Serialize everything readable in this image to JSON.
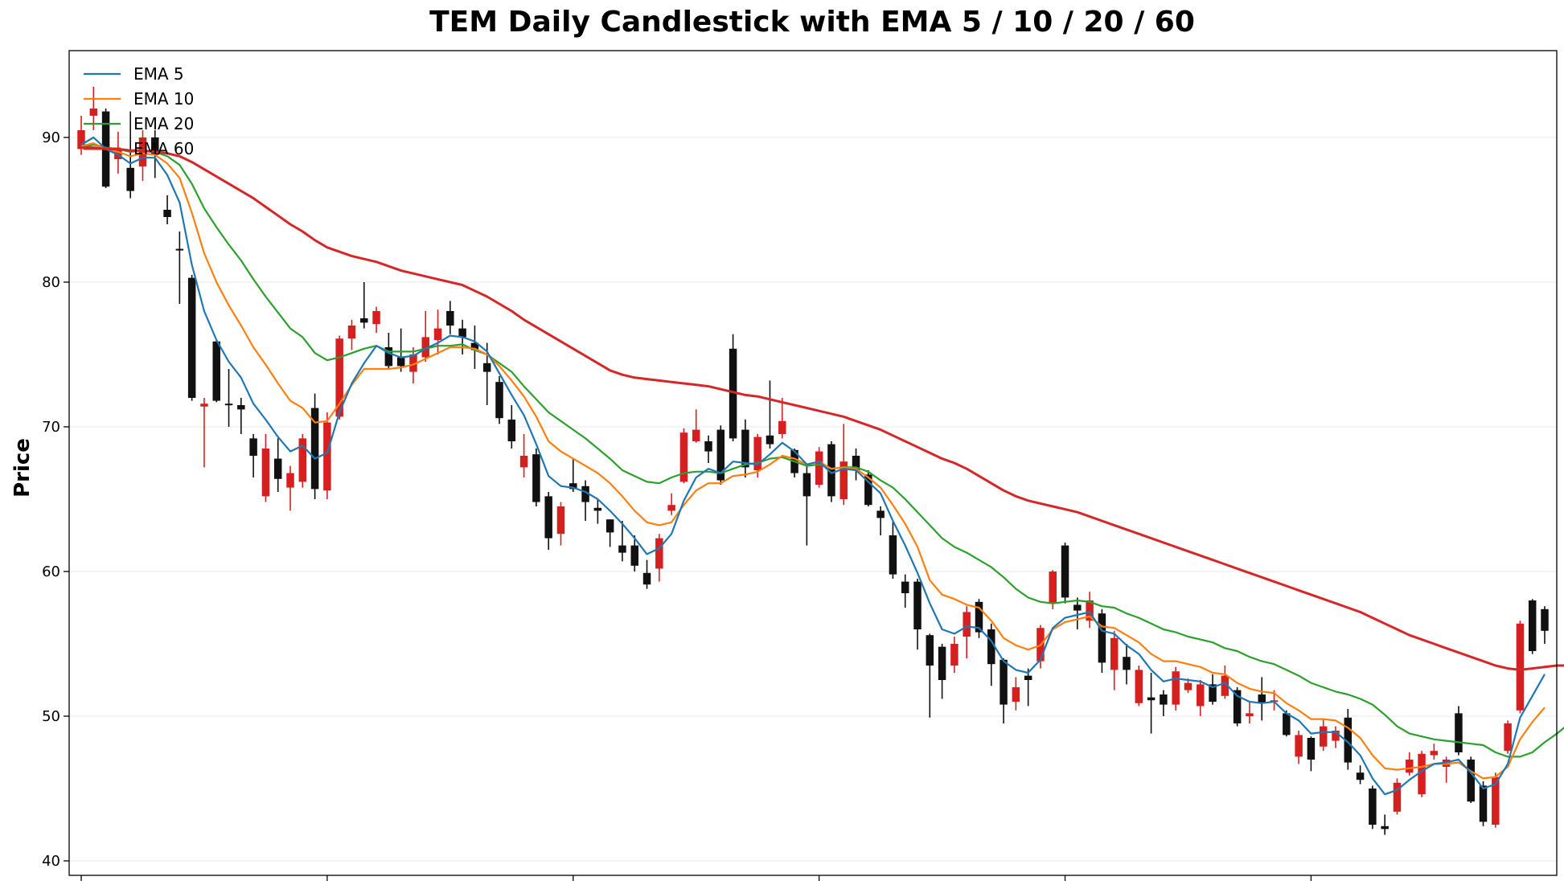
{
  "chart_data": {
    "type": "candlestick",
    "title": "TEM Daily Candlestick with EMA 5 / 10 / 20 / 60",
    "ylabel": "Price",
    "xlabel": "",
    "ylim": [
      39,
      96
    ],
    "yticks": [
      40,
      50,
      60,
      70,
      80,
      90
    ],
    "grid": true,
    "legend_position": "top-left",
    "colors": {
      "up": "#d62020",
      "down": "#111111",
      "ema5": "#1f77b4",
      "ema10": "#ff7f0e",
      "ema20": "#2ca02c",
      "ema60": "#d62728"
    },
    "legend": [
      {
        "key": "ema5",
        "label": "EMA 5"
      },
      {
        "key": "ema10",
        "label": "EMA 10"
      },
      {
        "key": "ema20",
        "label": "EMA 20"
      },
      {
        "key": "ema60",
        "label": "EMA 60"
      }
    ],
    "candles": [
      [
        89.2,
        90.5,
        91.5,
        88.8
      ],
      [
        91.5,
        92.0,
        93.5,
        90.5
      ],
      [
        91.8,
        86.6,
        92.0,
        86.5
      ],
      [
        88.5,
        89.2,
        90.4,
        87.5
      ],
      [
        87.9,
        86.3,
        91.8,
        85.8
      ],
      [
        88.0,
        90.0,
        90.5,
        87.0
      ],
      [
        90.0,
        88.8,
        90.5,
        87.2
      ],
      [
        85.0,
        84.5,
        86.0,
        84.0
      ],
      [
        82.3,
        82.2,
        83.5,
        78.5
      ],
      [
        80.3,
        72.0,
        80.5,
        71.8
      ],
      [
        71.4,
        71.6,
        72.0,
        67.2
      ],
      [
        75.9,
        71.8,
        76.0,
        71.7
      ],
      [
        71.6,
        71.5,
        74.0,
        70.0
      ],
      [
        71.5,
        71.2,
        72.0,
        69.5
      ],
      [
        69.2,
        68.0,
        69.5,
        66.5
      ],
      [
        65.2,
        68.5,
        69.5,
        64.8
      ],
      [
        67.8,
        66.4,
        69.2,
        65.5
      ],
      [
        65.8,
        66.8,
        67.3,
        64.2
      ],
      [
        66.2,
        69.2,
        69.5,
        65.8
      ],
      [
        71.3,
        65.7,
        72.3,
        65.0
      ],
      [
        65.6,
        70.3,
        71.0,
        65.0
      ],
      [
        70.7,
        76.1,
        76.3,
        70.5
      ],
      [
        76.1,
        77.0,
        77.4,
        75.3
      ],
      [
        77.5,
        77.2,
        80.0,
        76.8
      ],
      [
        77.1,
        78.0,
        78.3,
        76.5
      ],
      [
        75.5,
        74.2,
        76.5,
        74.0
      ],
      [
        74.8,
        74.2,
        76.8,
        73.8
      ],
      [
        73.8,
        75.0,
        75.5,
        73.0
      ],
      [
        74.8,
        76.2,
        78.0,
        74.5
      ],
      [
        76.0,
        76.8,
        78.1,
        75.0
      ],
      [
        78.0,
        77.0,
        78.7,
        76.4
      ],
      [
        76.8,
        76.2,
        77.4,
        75.0
      ],
      [
        75.8,
        75.3,
        77.0,
        74.0
      ],
      [
        74.4,
        73.8,
        75.8,
        71.5
      ],
      [
        73.1,
        70.6,
        73.5,
        70.2
      ],
      [
        70.5,
        69.0,
        71.5,
        68.5
      ],
      [
        67.2,
        68.0,
        69.5,
        66.5
      ],
      [
        68.1,
        64.8,
        68.5,
        64.5
      ],
      [
        65.2,
        62.3,
        65.5,
        61.5
      ],
      [
        62.6,
        64.5,
        64.8,
        61.8
      ],
      [
        66.1,
        65.7,
        67.8,
        65.5
      ],
      [
        65.9,
        64.8,
        66.3,
        63.5
      ],
      [
        64.4,
        64.2,
        65.0,
        63.3
      ],
      [
        63.6,
        62.7,
        63.6,
        61.7
      ],
      [
        61.8,
        61.3,
        63.5,
        60.7
      ],
      [
        61.8,
        60.4,
        62.5,
        60.0
      ],
      [
        59.9,
        59.1,
        60.8,
        58.8
      ],
      [
        60.2,
        62.3,
        62.6,
        59.3
      ],
      [
        64.2,
        64.6,
        65.4,
        63.9
      ],
      [
        66.2,
        69.6,
        69.9,
        66.1
      ],
      [
        69.0,
        69.8,
        71.2,
        68.9
      ],
      [
        69.0,
        68.3,
        69.4,
        67.5
      ],
      [
        69.8,
        66.3,
        70.1,
        66.0
      ],
      [
        75.4,
        69.2,
        76.4,
        69.0
      ],
      [
        69.8,
        67.2,
        70.5,
        66.5
      ],
      [
        67.0,
        69.3,
        69.5,
        66.5
      ],
      [
        69.4,
        68.8,
        73.2,
        68.5
      ],
      [
        69.5,
        70.4,
        72.0,
        69.2
      ],
      [
        68.4,
        66.8,
        68.5,
        66.5
      ],
      [
        66.8,
        65.2,
        67.3,
        61.8
      ],
      [
        66.0,
        68.3,
        68.6,
        65.8
      ],
      [
        68.8,
        65.2,
        69.0,
        64.8
      ],
      [
        65.0,
        67.6,
        70.2,
        64.6
      ],
      [
        68.0,
        67.0,
        68.5,
        66.3
      ],
      [
        66.7,
        64.6,
        67.0,
        64.5
      ],
      [
        64.2,
        63.7,
        64.5,
        62.5
      ],
      [
        62.5,
        59.8,
        63.5,
        59.5
      ],
      [
        59.3,
        58.5,
        59.8,
        57.5
      ],
      [
        59.3,
        56.0,
        59.5,
        54.6
      ],
      [
        55.6,
        53.5,
        55.7,
        49.9
      ],
      [
        54.8,
        52.5,
        55.0,
        51.2
      ],
      [
        53.5,
        55.0,
        55.5,
        53.0
      ],
      [
        55.5,
        57.2,
        57.6,
        54.0
      ],
      [
        57.9,
        55.8,
        58.1,
        55.4
      ],
      [
        56.0,
        53.6,
        56.4,
        52.1
      ],
      [
        53.9,
        50.8,
        54.0,
        49.5
      ],
      [
        51.0,
        52.0,
        52.7,
        50.4
      ],
      [
        52.8,
        52.5,
        53.3,
        50.7
      ],
      [
        53.8,
        56.1,
        56.3,
        53.3
      ],
      [
        57.8,
        60.0,
        60.1,
        57.4
      ],
      [
        61.8,
        58.2,
        62.0,
        57.8
      ],
      [
        57.7,
        57.3,
        58.2,
        56.0
      ],
      [
        56.6,
        58.0,
        58.6,
        56.1
      ],
      [
        57.1,
        53.7,
        57.4,
        53.0
      ],
      [
        53.2,
        55.4,
        55.9,
        51.8
      ],
      [
        54.1,
        53.2,
        55.0,
        52.2
      ],
      [
        50.9,
        53.2,
        53.5,
        50.7
      ],
      [
        51.3,
        51.1,
        53.0,
        48.8
      ],
      [
        51.5,
        50.8,
        51.8,
        50.0
      ],
      [
        50.8,
        53.1,
        53.4,
        50.4
      ],
      [
        51.8,
        52.3,
        52.6,
        51.6
      ],
      [
        50.7,
        52.2,
        52.5,
        50.0
      ],
      [
        52.2,
        51.0,
        52.9,
        50.8
      ],
      [
        51.4,
        52.8,
        53.5,
        51.2
      ],
      [
        51.8,
        49.5,
        52.0,
        49.3
      ],
      [
        50.0,
        50.2,
        51.0,
        49.5
      ],
      [
        51.5,
        50.9,
        52.7,
        49.7
      ],
      [
        51.0,
        51.1,
        51.8,
        50.4
      ],
      [
        50.2,
        48.7,
        50.4,
        48.6
      ],
      [
        47.2,
        48.7,
        49.0,
        46.7
      ],
      [
        48.5,
        47.0,
        48.6,
        46.2
      ],
      [
        47.9,
        49.3,
        49.8,
        47.6
      ],
      [
        48.3,
        49.0,
        49.3,
        47.8
      ],
      [
        49.9,
        46.8,
        50.5,
        46.3
      ],
      [
        46.1,
        45.6,
        46.6,
        45.3
      ],
      [
        45.0,
        42.5,
        45.2,
        42.2
      ],
      [
        42.4,
        42.2,
        43.2,
        41.8
      ],
      [
        43.4,
        45.4,
        45.7,
        43.2
      ],
      [
        46.1,
        47.0,
        47.5,
        45.9
      ],
      [
        44.6,
        47.4,
        47.6,
        44.4
      ],
      [
        47.3,
        47.6,
        48.1,
        47.0
      ],
      [
        46.5,
        47.0,
        47.2,
        45.4
      ],
      [
        50.2,
        47.5,
        50.7,
        47.3
      ],
      [
        47.0,
        44.1,
        47.2,
        44.0
      ],
      [
        45.2,
        42.7,
        45.5,
        42.4
      ],
      [
        42.5,
        45.8,
        46.1,
        42.3
      ],
      [
        47.6,
        49.5,
        49.7,
        47.4
      ],
      [
        50.4,
        56.4,
        56.6,
        50.2
      ],
      [
        58.0,
        54.5,
        58.1,
        54.3
      ],
      [
        57.4,
        55.9,
        57.6,
        55.0
      ]
    ],
    "ema5": [
      89.5,
      90.0,
      89.2,
      88.8,
      88.2,
      88.6,
      88.6,
      87.4,
      85.5,
      81.2,
      78.0,
      76.0,
      74.5,
      73.4,
      71.6,
      70.5,
      69.3,
      68.3,
      68.7,
      67.8,
      68.2,
      71.0,
      73.0,
      74.4,
      75.6,
      75.1,
      74.8,
      74.9,
      75.4,
      75.8,
      76.3,
      76.2,
      75.9,
      75.2,
      73.7,
      72.2,
      70.8,
      68.8,
      66.6,
      65.9,
      65.8,
      65.5,
      65.0,
      64.2,
      63.3,
      62.3,
      61.2,
      61.6,
      62.6,
      64.9,
      66.5,
      67.1,
      66.8,
      67.6,
      67.5,
      67.4,
      68.1,
      68.9,
      68.3,
      67.4,
      67.6,
      66.8,
      67.1,
      67.0,
      66.2,
      65.4,
      63.5,
      61.8,
      59.9,
      57.8,
      56.0,
      55.7,
      56.2,
      56.1,
      55.2,
      53.8,
      53.2,
      53.0,
      53.9,
      56.1,
      56.8,
      57.0,
      57.2,
      55.9,
      55.7,
      54.9,
      54.3,
      53.2,
      52.4,
      52.6,
      52.5,
      52.4,
      52.0,
      52.3,
      51.4,
      51.0,
      50.9,
      51.0,
      50.2,
      49.7,
      48.8,
      48.9,
      48.9,
      48.2,
      47.3,
      45.7,
      44.6,
      44.9,
      45.6,
      46.2,
      46.7,
      46.8,
      47.0,
      46.1,
      45.0,
      45.3,
      46.7,
      49.9,
      51.4,
      52.9
    ],
    "ema10": [
      89.4,
      89.6,
      89.2,
      89.0,
      88.7,
      88.9,
      88.8,
      88.2,
      87.2,
      84.8,
      82.0,
      80.0,
      78.4,
      77.0,
      75.5,
      74.3,
      73.0,
      71.8,
      71.3,
      70.3,
      70.4,
      71.6,
      72.9,
      74.0,
      74.0,
      74.0,
      74.1,
      74.3,
      74.7,
      75.1,
      75.5,
      75.5,
      75.4,
      75.0,
      74.2,
      73.2,
      72.1,
      70.7,
      69.0,
      68.3,
      67.8,
      67.3,
      66.8,
      66.1,
      65.2,
      64.2,
      63.4,
      63.2,
      63.4,
      64.6,
      65.6,
      66.1,
      66.1,
      66.6,
      66.7,
      66.9,
      67.4,
      68.0,
      67.8,
      67.4,
      67.6,
      67.1,
      67.2,
      67.1,
      66.5,
      65.8,
      64.6,
      63.3,
      61.7,
      59.4,
      58.4,
      58.1,
      57.7,
      57.5,
      56.6,
      55.4,
      54.9,
      54.6,
      54.9,
      56.0,
      56.5,
      56.7,
      56.9,
      56.2,
      56.1,
      55.6,
      55.1,
      54.3,
      53.8,
      53.8,
      53.6,
      53.4,
      53.0,
      52.9,
      52.3,
      51.9,
      51.7,
      51.6,
      50.9,
      50.4,
      49.8,
      49.8,
      49.7,
      49.2,
      48.5,
      47.3,
      46.4,
      46.3,
      46.4,
      46.5,
      46.7,
      46.7,
      46.8,
      46.2,
      45.7,
      45.8,
      46.5,
      48.4,
      49.6,
      50.6
    ],
    "ema20": [
      89.3,
      89.5,
      89.3,
      89.2,
      89.0,
      89.1,
      89.0,
      88.7,
      88.1,
      86.8,
      85.1,
      83.8,
      82.6,
      81.5,
      80.2,
      79.0,
      77.9,
      76.8,
      76.2,
      75.1,
      74.6,
      74.8,
      75.1,
      75.4,
      75.6,
      75.2,
      75.2,
      75.2,
      75.4,
      75.6,
      75.6,
      75.7,
      75.3,
      75.0,
      74.4,
      73.8,
      72.8,
      71.9,
      71.0,
      70.4,
      69.8,
      69.2,
      68.5,
      67.8,
      67.0,
      66.6,
      66.2,
      66.1,
      66.5,
      66.8,
      66.9,
      66.9,
      66.8,
      67.1,
      67.4,
      67.5,
      67.8,
      67.9,
      67.6,
      67.3,
      67.4,
      67.1,
      67.2,
      67.2,
      66.9,
      66.3,
      65.8,
      65.0,
      64.1,
      63.2,
      62.3,
      61.7,
      61.3,
      60.8,
      60.3,
      59.6,
      58.8,
      58.2,
      57.9,
      57.8,
      57.9,
      58.0,
      57.9,
      57.6,
      57.5,
      57.1,
      56.8,
      56.4,
      56.0,
      55.8,
      55.5,
      55.3,
      55.1,
      54.7,
      54.5,
      54.1,
      53.8,
      53.6,
      53.2,
      52.8,
      52.3,
      52.0,
      51.7,
      51.5,
      51.2,
      50.8,
      50.1,
      49.3,
      48.8,
      48.6,
      48.4,
      48.3,
      48.2,
      48.1,
      48.0,
      47.5,
      47.2,
      47.2,
      47.5,
      48.2,
      48.8,
      49.5
    ],
    "ema60": [
      89.3,
      89.3,
      89.2,
      89.2,
      89.1,
      89.1,
      89.0,
      88.9,
      88.7,
      88.3,
      87.8,
      87.3,
      86.8,
      86.3,
      85.8,
      85.2,
      84.6,
      84.0,
      83.5,
      82.9,
      82.4,
      82.1,
      81.8,
      81.6,
      81.4,
      81.1,
      80.8,
      80.6,
      80.4,
      80.2,
      80.0,
      79.8,
      79.4,
      79.0,
      78.5,
      78.0,
      77.4,
      76.9,
      76.4,
      75.9,
      75.4,
      74.9,
      74.4,
      73.9,
      73.6,
      73.4,
      73.3,
      73.2,
      73.1,
      73.0,
      72.9,
      72.8,
      72.6,
      72.4,
      72.2,
      72.1,
      71.9,
      71.7,
      71.5,
      71.3,
      71.1,
      70.9,
      70.7,
      70.4,
      70.1,
      69.8,
      69.4,
      69.0,
      68.6,
      68.2,
      67.8,
      67.5,
      67.1,
      66.6,
      66.1,
      65.6,
      65.2,
      64.9,
      64.7,
      64.5,
      64.3,
      64.1,
      63.8,
      63.5,
      63.2,
      62.9,
      62.6,
      62.3,
      62.0,
      61.7,
      61.4,
      61.1,
      60.8,
      60.5,
      60.2,
      59.9,
      59.6,
      59.3,
      59.0,
      58.7,
      58.4,
      58.1,
      57.8,
      57.5,
      57.2,
      56.8,
      56.4,
      56.0,
      55.6,
      55.3,
      55.0,
      54.7,
      54.4,
      54.1,
      53.8,
      53.5,
      53.3,
      53.2,
      53.3,
      53.4,
      53.5,
      53.5
    ]
  }
}
